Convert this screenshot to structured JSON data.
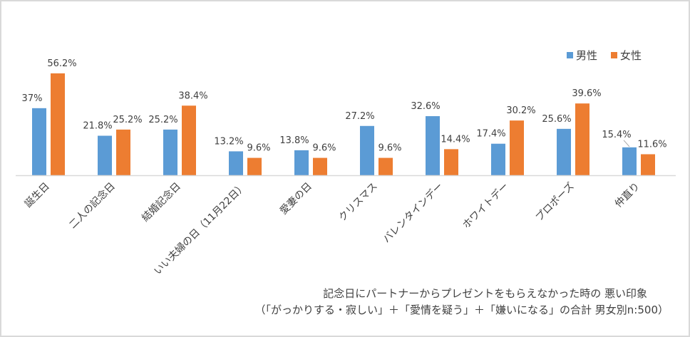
{
  "chart_data": {
    "type": "bar",
    "title": "",
    "caption_line1": "記念日にパートナーからプレゼントをもらえなかった時の 悪い印象",
    "caption_line2": "（「がっかりする・寂しい」＋「愛情を疑う」＋「嫌いになる」の合計  男女別n:500）",
    "xlabel": "",
    "ylabel": "",
    "ylim": [
      0,
      60
    ],
    "grid": false,
    "legend_position": "top-right",
    "categories": [
      "誕生日",
      "二人の記念日",
      "結婚記念日",
      "いい夫婦の日（11月22日）",
      "愛妻の日",
      "クリスマス",
      "バレンタインデー",
      "ホワイトデー",
      "プロポーズ",
      "仲直り"
    ],
    "series": [
      {
        "name": "男性",
        "color": "#5b9bd5",
        "values": [
          37,
          21.8,
          25.2,
          13.2,
          13.8,
          27.2,
          32.6,
          17.4,
          25.6,
          15.4
        ],
        "labels": [
          "37%",
          "21.8%",
          "25.2%",
          "13.2%",
          "13.8%",
          "27.2%",
          "32.6%",
          "17.4%",
          "25.6%",
          "15.4%"
        ]
      },
      {
        "name": "女性",
        "color": "#ed7d31",
        "values": [
          56.2,
          25.2,
          38.4,
          9.6,
          9.6,
          9.6,
          14.4,
          30.2,
          39.6,
          11.6
        ],
        "labels": [
          "56.2%",
          "25.2%",
          "38.4%",
          "9.6%",
          "9.6%",
          "9.6%",
          "14.4%",
          "30.2%",
          "39.6%",
          "11.6%"
        ]
      }
    ]
  }
}
